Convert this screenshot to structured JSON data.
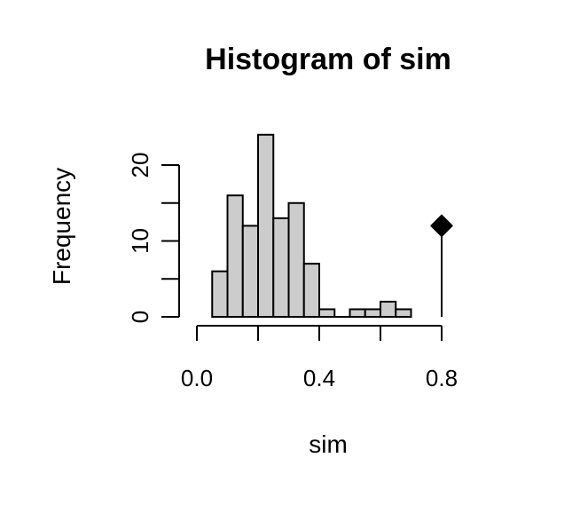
{
  "chart_data": {
    "type": "bar",
    "title": "Histogram of sim",
    "xlabel": "sim",
    "ylabel": "Frequency",
    "xlim": [
      0.0,
      0.8
    ],
    "ylim": [
      0,
      24
    ],
    "x_ticks": [
      "0.0",
      "0.4",
      "0.8"
    ],
    "x_tick_values": [
      0.0,
      0.2,
      0.4,
      0.6,
      0.8
    ],
    "y_ticks": [
      "0",
      "10",
      "20"
    ],
    "y_tick_values": [
      0,
      5,
      10,
      15,
      20
    ],
    "bin_width": 0.05,
    "bins": [
      {
        "start": 0.05,
        "end": 0.1,
        "count": 6
      },
      {
        "start": 0.1,
        "end": 0.15,
        "count": 16
      },
      {
        "start": 0.15,
        "end": 0.2,
        "count": 12
      },
      {
        "start": 0.2,
        "end": 0.25,
        "count": 24
      },
      {
        "start": 0.25,
        "end": 0.3,
        "count": 13
      },
      {
        "start": 0.3,
        "end": 0.35,
        "count": 15
      },
      {
        "start": 0.35,
        "end": 0.4,
        "count": 7
      },
      {
        "start": 0.4,
        "end": 0.45,
        "count": 1
      },
      {
        "start": 0.45,
        "end": 0.5,
        "count": 0
      },
      {
        "start": 0.5,
        "end": 0.55,
        "count": 1
      },
      {
        "start": 0.55,
        "end": 0.6,
        "count": 1
      },
      {
        "start": 0.6,
        "end": 0.65,
        "count": 2
      },
      {
        "start": 0.65,
        "end": 0.7,
        "count": 1
      }
    ],
    "marker": {
      "x": 0.8,
      "y": 12,
      "shape": "diamond",
      "color": "#000000"
    },
    "bar_color": "#cccccc",
    "grid": false
  }
}
